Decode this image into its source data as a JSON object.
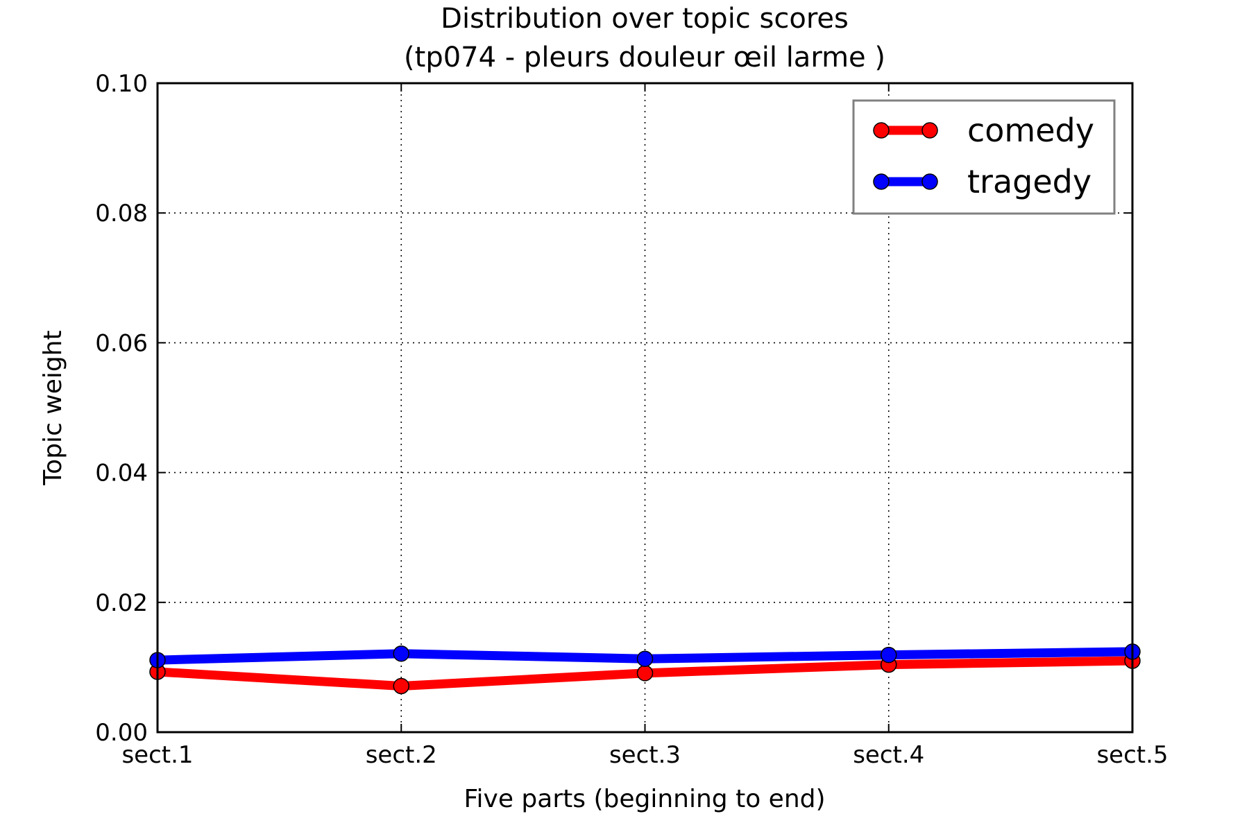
{
  "chart_data": {
    "type": "line",
    "title": "Distribution over topic scores",
    "subtitle": "(tp074 - pleurs douleur œil larme )",
    "xlabel": "Five parts (beginning to end)",
    "ylabel": "Topic weight",
    "categories": [
      "sect.1",
      "sect.2",
      "sect.3",
      "sect.4",
      "sect.5"
    ],
    "ylim": [
      0,
      0.1
    ],
    "yticks": [
      0,
      0.02,
      0.04,
      0.06,
      0.08,
      0.1
    ],
    "ytick_labels": [
      "0.00",
      "0.02",
      "0.04",
      "0.06",
      "0.08",
      "0.10"
    ],
    "grid": true,
    "legend_position": "top-right",
    "series": [
      {
        "name": "comedy",
        "color": "#ff0000",
        "values": [
          0.0093,
          0.0071,
          0.0091,
          0.0104,
          0.011
        ]
      },
      {
        "name": "tragedy",
        "color": "#0000ff",
        "values": [
          0.0111,
          0.0121,
          0.0113,
          0.0119,
          0.0124
        ]
      }
    ]
  }
}
